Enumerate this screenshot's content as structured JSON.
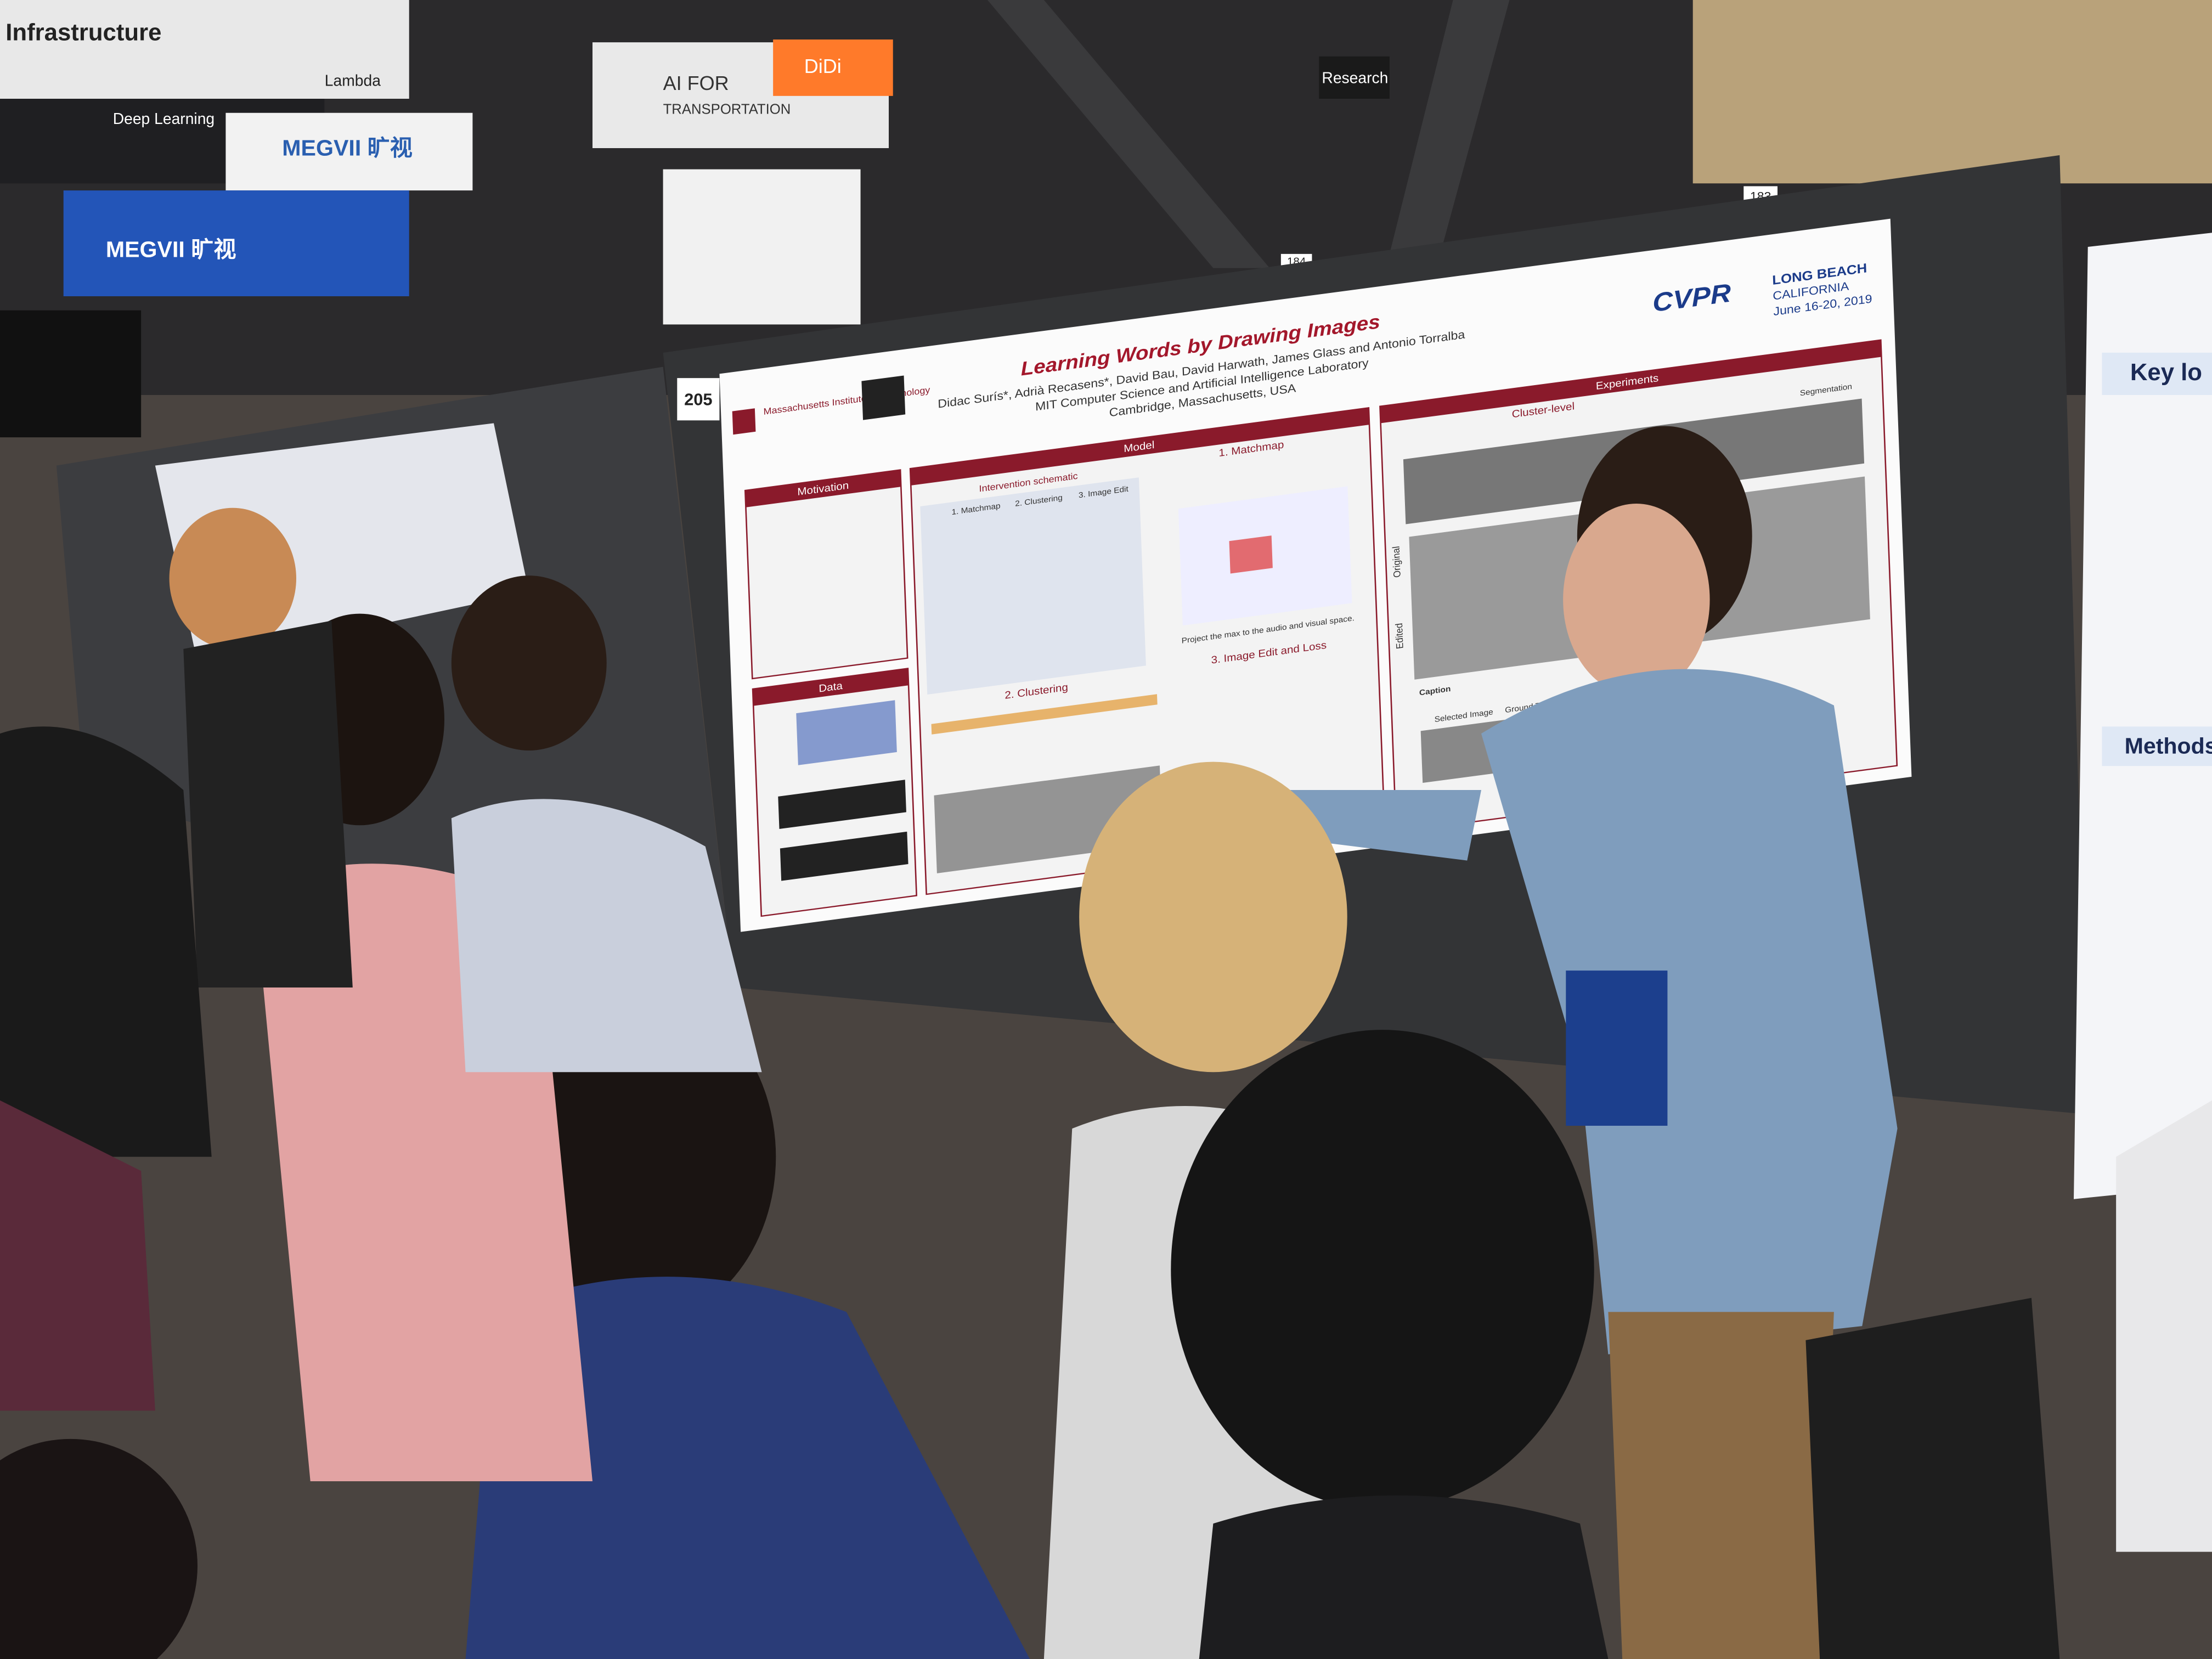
{
  "signs": {
    "infrastructure": "Infrastructure",
    "lambda": "Lambda",
    "deep_learning": "Deep Learning",
    "megvii": "MEGVII 旷视",
    "ai_for": "AI FOR",
    "transportation": "TRANSPORTATION",
    "didi": "DiDi",
    "research": "Research",
    "booth_183": "183",
    "booth_184": "184"
  },
  "poster": {
    "number": "205",
    "title": "Learning Words by Drawing Images",
    "authors": "Didac Surís*, Adrià Recasens*, David Bau, David Harwath, James Glass and Antonio Torralba",
    "affiliation": "MIT Computer Science and Artificial Intelligence Laboratory",
    "location": "Cambridge, Massachusetts, USA",
    "institution": "Massachusetts Institute of Technology",
    "conference": {
      "name": "CVPR",
      "city": "LONG BEACH",
      "state": "CALIFORNIA",
      "dates": "June 16-20, 2019"
    },
    "sections": {
      "motivation": "Motivation",
      "data": "Data",
      "model": "Model",
      "intervention": "Intervention schematic",
      "matchmap": "1. Matchmap",
      "clustering": "2. Clustering",
      "image_edit": "3. Image Edit",
      "image_edit_loss": "3. Image Edit and Loss",
      "project": "Project the max to the audio and visual space.",
      "experiments": "Experiments",
      "cluster_level": "Cluster-level",
      "segmentation": "Segmentation",
      "original": "Original",
      "edited": "Edited",
      "caption": "Caption",
      "selected_image": "Selected Image",
      "ground_truth": "Ground Truth"
    }
  },
  "neighbor_poster": {
    "key": "Key lo",
    "methods": "Methods"
  }
}
